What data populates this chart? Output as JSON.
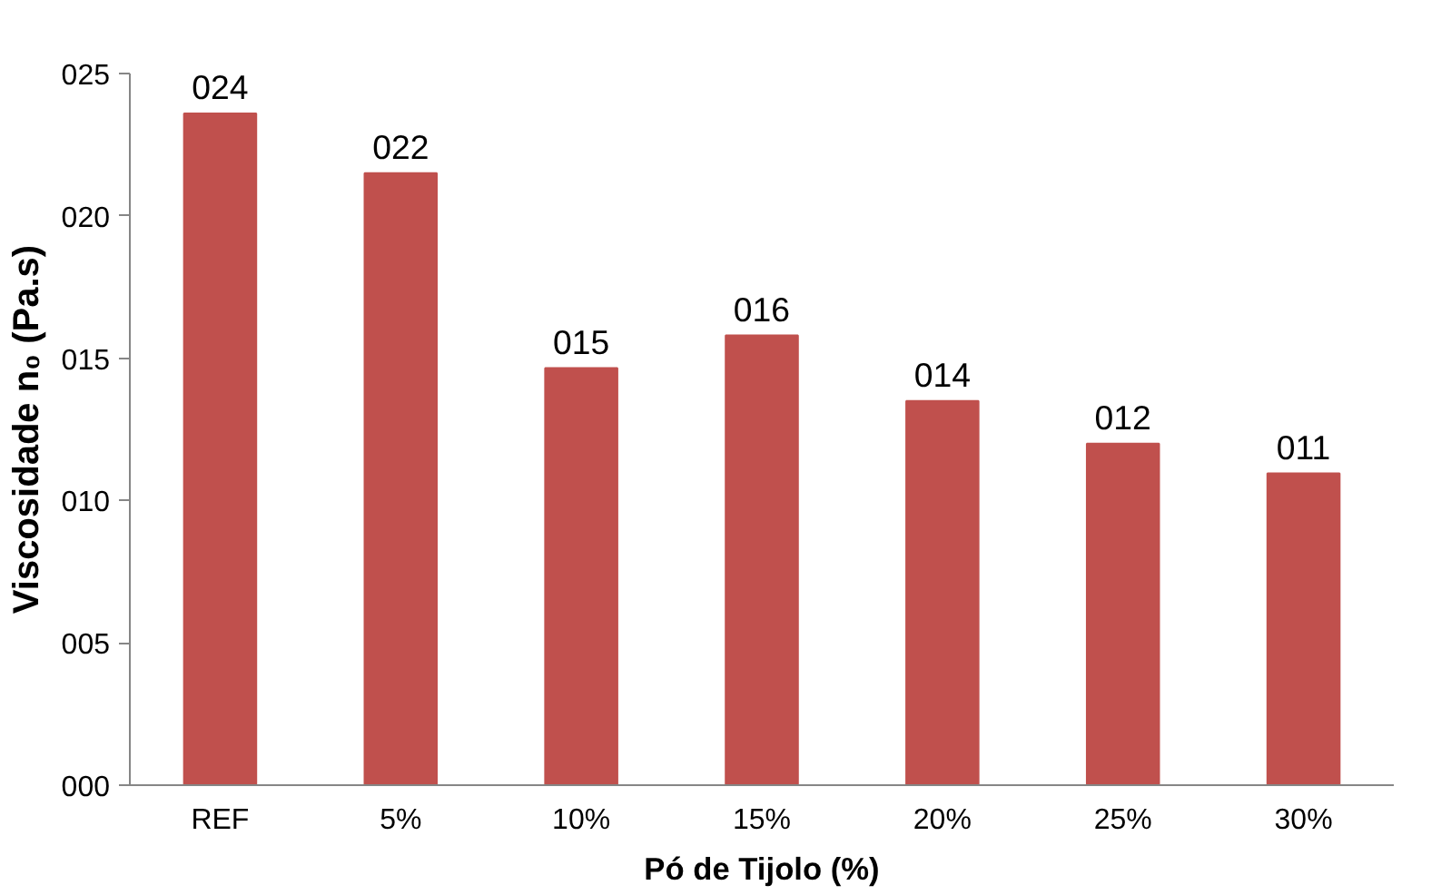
{
  "chart_data": {
    "type": "bar",
    "xlabel": "Pó de Tijolo (%)",
    "ylabel": "Viscosidade n₀ (Pa.s)",
    "categories": [
      "REF",
      "5%",
      "10%",
      "15%",
      "20%",
      "25%",
      "30%"
    ],
    "values": [
      23.6,
      21.5,
      14.65,
      15.8,
      13.5,
      12.0,
      10.95
    ],
    "value_labels": [
      "024",
      "022",
      "015",
      "016",
      "014",
      "012",
      "011"
    ],
    "color": "#c0504d",
    "ylim": [
      0,
      25
    ],
    "yticks": [
      {
        "value": 0,
        "label": "000"
      },
      {
        "value": 5,
        "label": "005"
      },
      {
        "value": 10,
        "label": "010"
      },
      {
        "value": 15,
        "label": "015"
      },
      {
        "value": 20,
        "label": "020"
      },
      {
        "value": 25,
        "label": "025"
      }
    ],
    "grid": false
  }
}
